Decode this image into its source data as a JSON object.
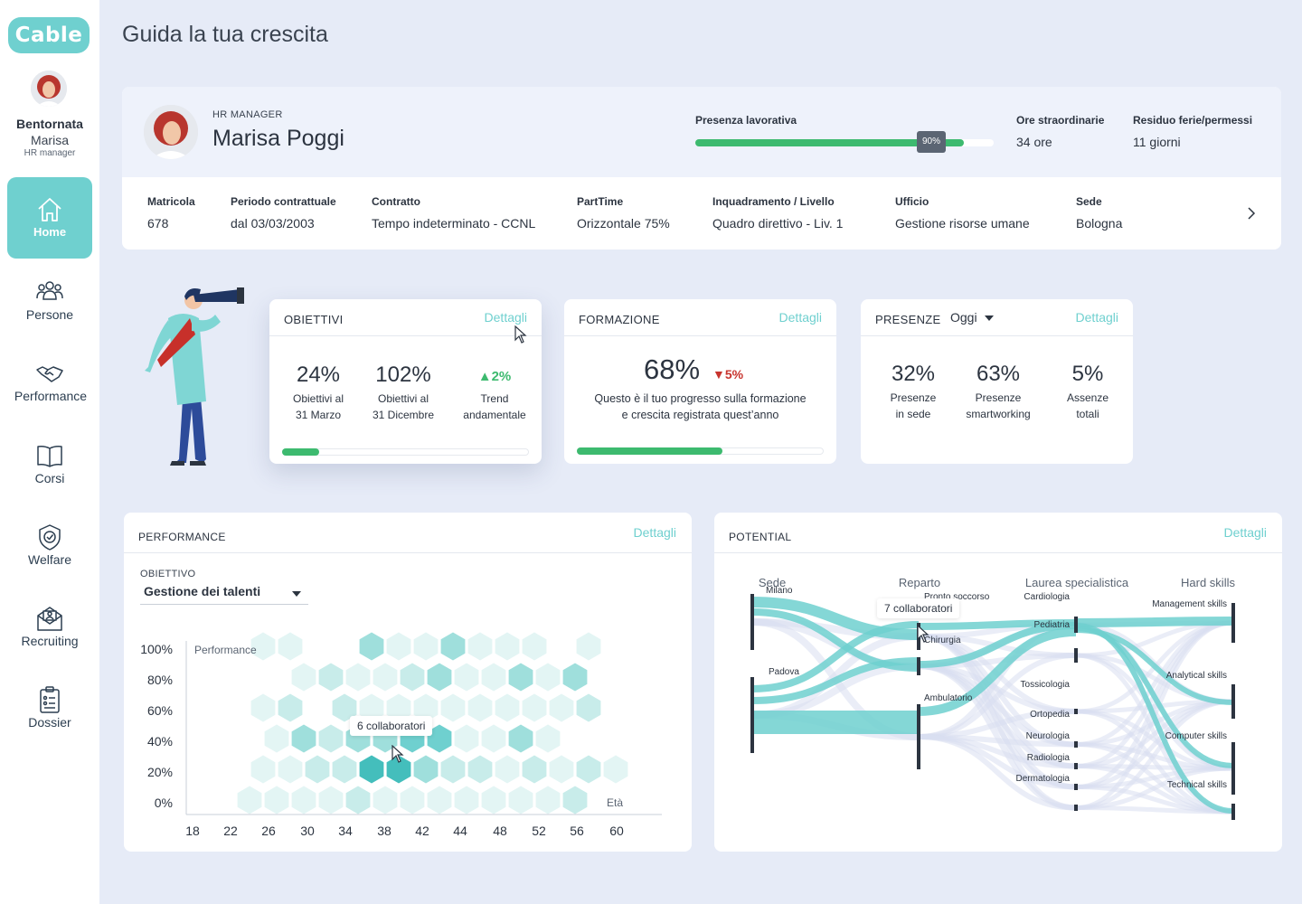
{
  "app": {
    "logo": "Cable",
    "page_title": "Guida la tua crescita"
  },
  "sidebar": {
    "user": {
      "first": "Bentornata",
      "name": "Marisa",
      "role": "HR manager"
    },
    "items": [
      {
        "label": "Home",
        "icon": "home-icon",
        "active": true
      },
      {
        "label": "Persone",
        "icon": "people-icon"
      },
      {
        "label": "Performance",
        "icon": "handshake-icon"
      },
      {
        "label": "Corsi",
        "icon": "book-icon"
      },
      {
        "label": "Welfare",
        "icon": "shield-check-icon"
      },
      {
        "label": "Recruiting",
        "icon": "envelope-user-icon"
      },
      {
        "label": "Dossier",
        "icon": "clipboard-icon"
      }
    ]
  },
  "profile": {
    "role": "HR MANAGER",
    "name": "Marisa Poggi",
    "presence_label": "Presenza lavorativa",
    "presence_value": 90,
    "presence_badge": "90%",
    "overtime_label": "Ore straordinarie",
    "overtime_value": "34 ore",
    "leave_label": "Residuo ferie/permessi",
    "leave_value": "11 giorni",
    "fields": [
      {
        "h": "Matricola",
        "v": "678"
      },
      {
        "h": "Periodo contrattuale",
        "v": "dal 03/03/2003"
      },
      {
        "h": "Contratto",
        "v": "Tempo indeterminato - CCNL"
      },
      {
        "h": "PartTime",
        "v": "Orizzontale 75%"
      },
      {
        "h": "Inquadramento / Livello",
        "v": "Quadro direttivo - Liv. 1"
      },
      {
        "h": "Ufficio",
        "v": "Gestione risorse umane"
      },
      {
        "h": "Sede",
        "v": "Bologna"
      }
    ]
  },
  "cards": {
    "obiettivi": {
      "title": "OBIETTIVI",
      "details": "Dettagli",
      "stats": [
        {
          "value": "24%",
          "label1": "Obiettivi al",
          "label2": "31 Marzo"
        },
        {
          "value": "102%",
          "label1": "Obiettivi al",
          "label2": "31 Dicembre"
        },
        {
          "value": "▲2%",
          "label1": "Trend",
          "label2": "andamentale"
        }
      ],
      "progress": 0.15
    },
    "formazione": {
      "title": "FORMAZIONE",
      "details": "Dettagli",
      "value": "68%",
      "trend": "▼5%",
      "text1": "Questo è il tuo progresso sulla formazione",
      "text2": "e crescita registrata quest’anno",
      "progress": 0.59
    },
    "presenze": {
      "title": "PRESENZE",
      "filter": "Oggi",
      "details": "Dettagli",
      "stats": [
        {
          "value": "32%",
          "label1": "Presenze",
          "label2": "in sede"
        },
        {
          "value": "63%",
          "label1": "Presenze",
          "label2": "smartworking"
        },
        {
          "value": "5%",
          "label1": "Assenze",
          "label2": "totali"
        }
      ]
    }
  },
  "performance": {
    "title": "PERFORMANCE",
    "details": "Dettagli",
    "objective_label": "OBIETTIVO",
    "objective_value": "Gestione dei talenti",
    "tooltip_count": "6",
    "tooltip_text": "collaboratori",
    "chart_data": {
      "type": "heatmap",
      "title": "",
      "xlabel": "Età",
      "ylabel": "Performance",
      "x_ticks": [
        "18",
        "22",
        "26",
        "30",
        "34",
        "38",
        "42",
        "44",
        "48",
        "52",
        "56",
        "60"
      ],
      "y_ticks": [
        "0%",
        "20%",
        "40%",
        "60%",
        "80%",
        "100%"
      ],
      "note": "hexbin density of collaborators by age and performance",
      "grid": false
    }
  },
  "potential": {
    "title": "POTENTIAL",
    "details": "Dettagli",
    "tooltip_count": "7",
    "tooltip_text": "collaboratori",
    "chart_data": {
      "type": "sankey",
      "title": "",
      "columns": [
        "Sede",
        "Reparto",
        "Laurea specialistica",
        "Hard skills"
      ],
      "nodes": {
        "sede": [
          "Milano",
          "Padova"
        ],
        "reparto": [
          "Pronto soccorso",
          "Chirurgia",
          "Ambulatorio"
        ],
        "laurea": [
          "Cardiologia",
          "Pediatria",
          "Tossicologia",
          "Ortopedia",
          "Neurologia",
          "Radiologia",
          "Dermatologia"
        ],
        "skills": [
          "Management skills",
          "Analytical skills",
          "Computer skills",
          "Technical skills"
        ]
      }
    }
  },
  "colors": {
    "accent": "#6fd0cf",
    "progress": "#3dba6f",
    "down": "#c8342e",
    "bg": "#e6ebf7"
  }
}
